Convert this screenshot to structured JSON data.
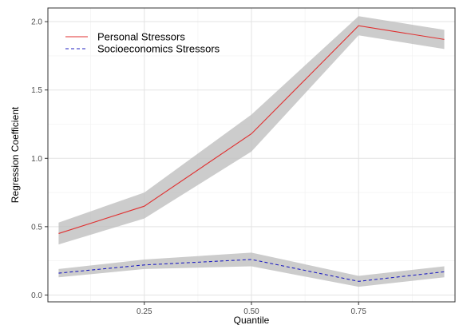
{
  "chart_data": {
    "type": "line",
    "title": "",
    "xlabel": "Quantile",
    "ylabel": "Regression Coefficient",
    "xlim": [
      0.025,
      0.975
    ],
    "ylim": [
      -0.05,
      2.1
    ],
    "x_ticks": [
      0.25,
      0.5,
      0.75
    ],
    "x_tick_labels": [
      "0.25",
      "0.50",
      "0.75"
    ],
    "y_ticks": [
      0.0,
      0.5,
      1.0,
      1.5,
      2.0
    ],
    "y_tick_labels": [
      "0.0",
      "0.5",
      "1.0",
      "1.5",
      "2.0"
    ],
    "grid": true,
    "legend_position": "top-left",
    "x": [
      0.05,
      0.25,
      0.5,
      0.75,
      0.95
    ],
    "series": [
      {
        "name": "Personal Stressors",
        "line_style": "solid",
        "color": "#e03030",
        "values": [
          0.45,
          0.65,
          1.18,
          1.97,
          1.87
        ],
        "lower": [
          0.37,
          0.56,
          1.05,
          1.9,
          1.8
        ],
        "upper": [
          0.53,
          0.75,
          1.32,
          2.04,
          1.94
        ]
      },
      {
        "name": "Socioeconomics Stressors",
        "line_style": "dashed",
        "color": "#2020c0",
        "values": [
          0.16,
          0.22,
          0.26,
          0.1,
          0.17
        ],
        "lower": [
          0.13,
          0.19,
          0.21,
          0.06,
          0.13
        ],
        "upper": [
          0.19,
          0.26,
          0.31,
          0.14,
          0.21
        ]
      }
    ],
    "band_color": "#bebebe"
  }
}
